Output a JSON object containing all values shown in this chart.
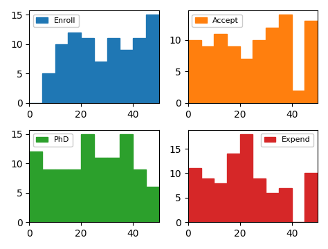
{
  "enroll": [
    0,
    5,
    10,
    12,
    11,
    7,
    11,
    9,
    11,
    15
  ],
  "accept": [
    10,
    9,
    11,
    9,
    7,
    10,
    12,
    14,
    2,
    13
  ],
  "phd": [
    12,
    9,
    9,
    9,
    15,
    11,
    11,
    15,
    9,
    6
  ],
  "expend": [
    11,
    9,
    8,
    14,
    18,
    9,
    6,
    7,
    0,
    10
  ],
  "colors": {
    "enroll": "#1f77b4",
    "accept": "#ff7f0e",
    "phd": "#2ca02c",
    "expend": "#d62728"
  },
  "labels": {
    "enroll": "Enroll",
    "accept": "Accept",
    "phd": "PhD",
    "expend": "Expend"
  },
  "legend_loc": {
    "enroll": "upper left",
    "accept": "upper left",
    "phd": "upper left",
    "expend": "upper right"
  },
  "bin_edges": [
    0,
    5,
    10,
    15,
    20,
    25,
    30,
    35,
    40,
    45,
    50
  ]
}
